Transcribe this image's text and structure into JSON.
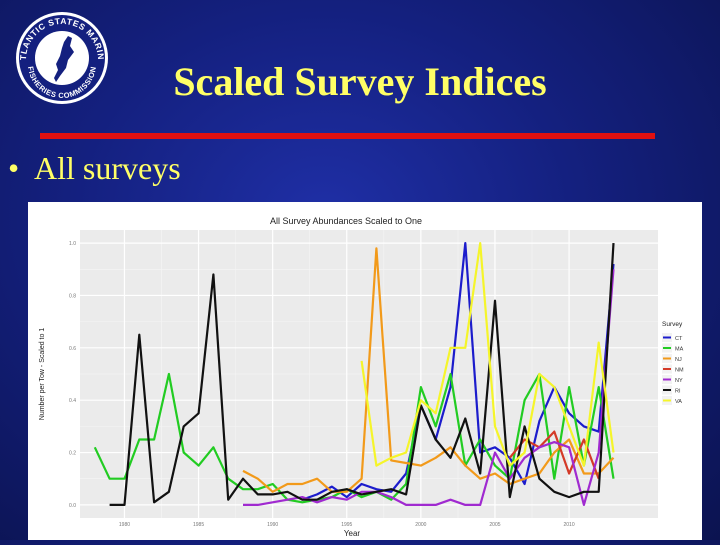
{
  "logo": {
    "text_top": "ATLANTIC STATES MARINE",
    "text_bottom": "FISHERIES COMMISSION"
  },
  "slide": {
    "title": "Scaled Survey Indices",
    "bullet": "All surveys",
    "bullet_marker": "•"
  },
  "colors": {
    "title": "#ffff66",
    "rule": "#e01010",
    "background": "#14207f"
  },
  "chart_data": {
    "type": "line",
    "title": "All Survey Abundances Scaled to One",
    "xlabel": "Year",
    "ylabel": "Number per Tow - Scaled to 1",
    "xlim": [
      1977,
      2016
    ],
    "ylim": [
      -0.05,
      1.05
    ],
    "x_ticks": [
      1980,
      1985,
      1990,
      1995,
      2000,
      2005,
      2010
    ],
    "y_ticks": [
      0.0,
      0.2,
      0.4,
      0.6,
      0.8,
      1.0
    ],
    "grid": true,
    "legend_title": "Survey",
    "legend_position": "right",
    "series": [
      {
        "name": "CT",
        "color": "#1c1ccc",
        "x": [
          1992,
          1993,
          1994,
          1995,
          1996,
          1997,
          1998,
          1999,
          2000,
          2001,
          2002,
          2003,
          2004,
          2005,
          2006,
          2007,
          2008,
          2009,
          2010,
          2011,
          2012,
          2013
        ],
        "y": [
          0.02,
          0.04,
          0.07,
          0.03,
          0.08,
          0.06,
          0.05,
          0.12,
          0.38,
          0.25,
          0.45,
          1.0,
          0.2,
          0.22,
          0.18,
          0.08,
          0.32,
          0.45,
          0.35,
          0.3,
          0.28,
          0.92
        ]
      },
      {
        "name": "MA",
        "color": "#22cc22",
        "x": [
          1978,
          1979,
          1980,
          1981,
          1982,
          1983,
          1984,
          1985,
          1986,
          1987,
          1988,
          1989,
          1990,
          1991,
          1992,
          1993,
          1994,
          1995,
          1996,
          1997,
          1998,
          1999,
          2000,
          2001,
          2002,
          2003,
          2004,
          2005,
          2006,
          2007,
          2008,
          2009,
          2010,
          2011,
          2012,
          2013
        ],
        "y": [
          0.22,
          0.1,
          0.1,
          0.25,
          0.25,
          0.5,
          0.2,
          0.15,
          0.22,
          0.1,
          0.06,
          0.06,
          0.08,
          0.02,
          0.01,
          0.02,
          0.03,
          0.06,
          0.03,
          0.05,
          0.02,
          0.08,
          0.45,
          0.3,
          0.5,
          0.15,
          0.25,
          0.15,
          0.1,
          0.4,
          0.5,
          0.1,
          0.45,
          0.15,
          0.45,
          0.1
        ]
      },
      {
        "name": "NJ",
        "color": "#f29a1a",
        "x": [
          1988,
          1989,
          1990,
          1991,
          1992,
          1993,
          1994,
          1995,
          1996,
          1997,
          1998,
          1999,
          2000,
          2001,
          2002,
          2003,
          2004,
          2005,
          2006,
          2007,
          2008,
          2009,
          2010,
          2011,
          2012,
          2013
        ],
        "y": [
          0.13,
          0.1,
          0.05,
          0.08,
          0.08,
          0.1,
          0.05,
          0.05,
          0.1,
          0.98,
          0.17,
          0.16,
          0.15,
          0.18,
          0.22,
          0.15,
          0.1,
          0.12,
          0.08,
          0.1,
          0.12,
          0.2,
          0.25,
          0.12,
          0.12,
          0.18
        ]
      },
      {
        "name": "NM",
        "color": "#d43a28",
        "x": [
          2006,
          2007,
          2008,
          2009,
          2010,
          2011,
          2012
        ],
        "y": [
          0.18,
          0.25,
          0.22,
          0.28,
          0.12,
          0.25,
          0.1
        ]
      },
      {
        "name": "NY",
        "color": "#a02ad0",
        "x": [
          1988,
          1989,
          1990,
          1991,
          1992,
          1993,
          1994,
          1995,
          1996,
          1997,
          1998,
          1999,
          2000,
          2001,
          2002,
          2003,
          2004,
          2005,
          2006,
          2007,
          2008,
          2009,
          2010,
          2011,
          2012,
          2013
        ],
        "y": [
          0.0,
          0.0,
          0.01,
          0.02,
          0.03,
          0.01,
          0.03,
          0.02,
          0.05,
          0.05,
          0.03,
          0.0,
          0.0,
          0.0,
          0.02,
          0.0,
          0.0,
          0.2,
          0.1,
          0.18,
          0.22,
          0.24,
          0.22,
          0.0,
          0.2,
          0.9
        ]
      },
      {
        "name": "RI",
        "color": "#111111",
        "x": [
          1979,
          1980,
          1981,
          1982,
          1983,
          1984,
          1985,
          1986,
          1987,
          1988,
          1989,
          1990,
          1991,
          1992,
          1993,
          1994,
          1995,
          1996,
          1997,
          1998,
          1999,
          2000,
          2001,
          2002,
          2003,
          2004,
          2005,
          2006,
          2007,
          2008,
          2009,
          2010,
          2011,
          2012,
          2013
        ],
        "y": [
          0.0,
          0.0,
          0.65,
          0.01,
          0.05,
          0.3,
          0.35,
          0.88,
          0.02,
          0.1,
          0.04,
          0.04,
          0.05,
          0.02,
          0.02,
          0.05,
          0.06,
          0.04,
          0.05,
          0.06,
          0.04,
          0.38,
          0.25,
          0.18,
          0.33,
          0.12,
          0.78,
          0.03,
          0.3,
          0.1,
          0.05,
          0.03,
          0.05,
          0.05,
          1.0
        ]
      },
      {
        "name": "VA",
        "color": "#f5f52a",
        "x": [
          1996,
          1997,
          1998,
          1999,
          2000,
          2001,
          2002,
          2003,
          2004,
          2005,
          2006,
          2007,
          2008,
          2009,
          2010,
          2011,
          2012,
          2013
        ],
        "y": [
          0.55,
          0.15,
          0.18,
          0.2,
          0.4,
          0.35,
          0.6,
          0.6,
          1.0,
          0.3,
          0.15,
          0.2,
          0.5,
          0.45,
          0.3,
          0.15,
          0.62,
          0.2
        ]
      }
    ]
  }
}
